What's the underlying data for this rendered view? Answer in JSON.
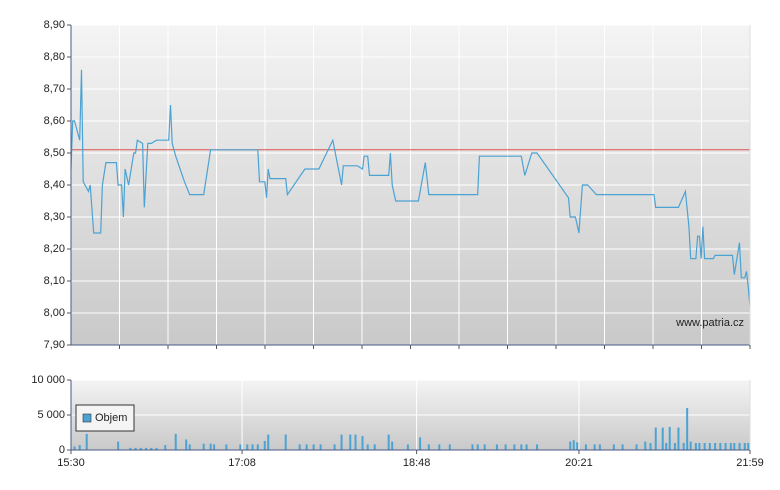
{
  "chart_data": [
    {
      "type": "line",
      "color": "#4ba3d3",
      "annotation": "www.patria.cz",
      "reference_line": 8.51,
      "reference_color": "#d9534f",
      "xlim": [
        "15:30",
        "21:59"
      ],
      "ylim": [
        7.9,
        8.9
      ],
      "yticks": [
        {
          "value": 7.9,
          "label": "7,90"
        },
        {
          "value": 8.0,
          "label": "8,00"
        },
        {
          "value": 8.1,
          "label": "8,10"
        },
        {
          "value": 8.2,
          "label": "8,20"
        },
        {
          "value": 8.3,
          "label": "8,30"
        },
        {
          "value": 8.4,
          "label": "8,40"
        },
        {
          "value": 8.5,
          "label": "8,50"
        },
        {
          "value": 8.6,
          "label": "8,60"
        },
        {
          "value": 8.7,
          "label": "8,70"
        },
        {
          "value": 8.8,
          "label": "8,80"
        },
        {
          "value": 8.9,
          "label": "8,90"
        }
      ],
      "x": [
        "15:30",
        "15:31",
        "15:32",
        "15:35",
        "15:36",
        "15:37",
        "15:40",
        "15:41",
        "15:43",
        "15:47",
        "15:48",
        "15:50",
        "15:56",
        "15:57",
        "15:59",
        "16:00",
        "16:01",
        "16:03",
        "16:06",
        "16:07",
        "16:08",
        "16:11",
        "16:12",
        "16:14",
        "16:16",
        "16:19",
        "16:26",
        "16:27",
        "16:28",
        "16:30",
        "16:35",
        "16:38",
        "16:46",
        "16:50",
        "17:17",
        "17:18",
        "17:21",
        "17:22",
        "17:23",
        "17:24",
        "17:33",
        "17:34",
        "17:44",
        "17:52",
        "18:00",
        "18:05",
        "18:06",
        "18:14",
        "18:17",
        "18:18",
        "18:20",
        "18:21",
        "18:32",
        "18:33",
        "18:34",
        "18:36",
        "18:49",
        "18:53",
        "18:55",
        "19:23",
        "19:24",
        "19:48",
        "19:50",
        "19:54",
        "19:57",
        "20:15",
        "20:16",
        "20:19",
        "20:21",
        "20:23",
        "20:26",
        "20:31",
        "21:04",
        "21:05",
        "21:18",
        "21:22",
        "21:24",
        "21:25",
        "21:28",
        "21:29",
        "21:30",
        "21:31",
        "21:32",
        "21:33",
        "21:38",
        "21:39",
        "21:49",
        "21:50",
        "21:53",
        "21:54",
        "21:56",
        "21:57",
        "21:58",
        "21:59"
      ],
      "values": [
        8.45,
        8.6,
        8.6,
        8.54,
        8.76,
        8.41,
        8.38,
        8.4,
        8.25,
        8.25,
        8.4,
        8.47,
        8.47,
        8.4,
        8.4,
        8.3,
        8.45,
        8.4,
        8.5,
        8.5,
        8.54,
        8.53,
        8.33,
        8.53,
        8.53,
        8.54,
        8.54,
        8.65,
        8.53,
        8.49,
        8.41,
        8.37,
        8.37,
        8.51,
        8.51,
        8.41,
        8.41,
        8.36,
        8.45,
        8.42,
        8.42,
        8.37,
        8.45,
        8.45,
        8.54,
        8.4,
        8.46,
        8.46,
        8.45,
        8.49,
        8.49,
        8.43,
        8.43,
        8.5,
        8.4,
        8.35,
        8.35,
        8.47,
        8.37,
        8.37,
        8.49,
        8.49,
        8.43,
        8.5,
        8.5,
        8.36,
        8.3,
        8.3,
        8.25,
        8.4,
        8.4,
        8.37,
        8.37,
        8.33,
        8.33,
        8.38,
        8.27,
        8.17,
        8.17,
        8.24,
        8.24,
        8.17,
        8.27,
        8.17,
        8.17,
        8.18,
        8.18,
        8.12,
        8.22,
        8.11,
        8.11,
        8.13,
        8.08,
        8.02
      ]
    },
    {
      "type": "bar",
      "xlim": [
        "15:30",
        "21:59"
      ],
      "xticks": [
        "15:30",
        "17:08",
        "18:48",
        "20:21",
        "21:59"
      ],
      "ylim": [
        0,
        10000
      ],
      "yticks": [
        0,
        {
          "value": 5000,
          "label": "5 000"
        },
        {
          "value": 10000,
          "label": "10 000"
        }
      ],
      "x": [
        "15:32",
        "15:35",
        "15:39",
        "15:57",
        "16:04",
        "16:07",
        "16:10",
        "16:13",
        "16:16",
        "16:19",
        "16:24",
        "16:30",
        "16:36",
        "16:38",
        "16:46",
        "16:50",
        "16:52",
        "16:59",
        "17:07",
        "17:11",
        "17:14",
        "17:17",
        "17:21",
        "17:23",
        "17:33",
        "17:41",
        "17:45",
        "17:49",
        "17:53",
        "18:01",
        "18:05",
        "18:10",
        "18:13",
        "18:17",
        "18:20",
        "18:24",
        "18:32",
        "18:34",
        "18:43",
        "18:50",
        "18:55",
        "19:01",
        "19:07",
        "19:20",
        "19:23",
        "19:27",
        "19:34",
        "19:39",
        "19:44",
        "19:48",
        "19:51",
        "19:57",
        "20:16",
        "20:18",
        "20:20",
        "20:25",
        "20:30",
        "20:33",
        "20:41",
        "20:46",
        "20:54",
        "20:59",
        "21:02",
        "21:05",
        "21:09",
        "21:11",
        "21:13",
        "21:16",
        "21:18",
        "21:21",
        "21:23",
        "21:25",
        "21:28",
        "21:30",
        "21:33",
        "21:36",
        "21:39",
        "21:42",
        "21:45",
        "21:48",
        "21:50",
        "21:53",
        "21:56",
        "21:58"
      ],
      "series": [
        {
          "name": "Objem",
          "color": "#4ba3d3",
          "values": [
            500,
            700,
            2300,
            1200,
            300,
            300,
            300,
            300,
            300,
            300,
            700,
            2300,
            1500,
            800,
            900,
            900,
            800,
            800,
            800,
            800,
            800,
            800,
            1300,
            2200,
            2200,
            800,
            800,
            800,
            800,
            800,
            2200,
            2200,
            2200,
            2000,
            800,
            800,
            2200,
            1200,
            800,
            1800,
            800,
            800,
            800,
            800,
            800,
            800,
            800,
            800,
            800,
            800,
            800,
            800,
            1200,
            1400,
            1100,
            800,
            800,
            800,
            800,
            800,
            800,
            1200,
            1000,
            3200,
            3200,
            1000,
            3300,
            1000,
            3200,
            1000,
            6000,
            1200,
            1000,
            1000,
            1000,
            1000,
            1000,
            1000,
            1000,
            1000,
            1000,
            1000,
            1000,
            1000
          ]
        }
      ]
    }
  ]
}
